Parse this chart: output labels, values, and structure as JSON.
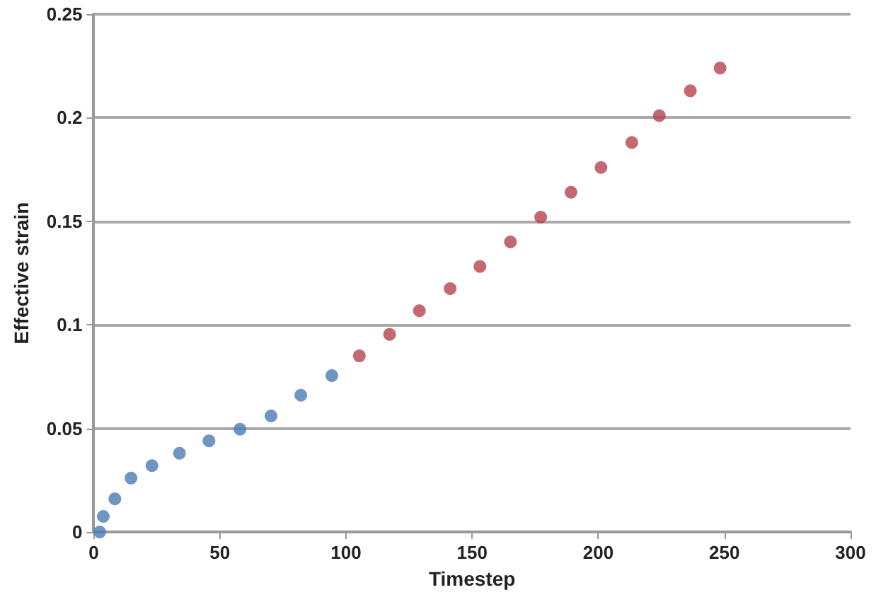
{
  "chart_data": {
    "type": "scatter",
    "xlabel": "Timestep",
    "ylabel": "Effective strain",
    "xlim": [
      0,
      300
    ],
    "xticks": [
      0,
      50,
      100,
      150,
      200,
      250,
      300
    ],
    "ylim": [
      0,
      0.25
    ],
    "yticks": [
      0,
      0.05,
      0.1,
      0.15,
      0.2,
      0.25
    ],
    "grid": "y",
    "marker": "circle",
    "series": [
      {
        "color": "#4a7ab5",
        "x": [
          2.4,
          3.8,
          8.4,
          14.8,
          23.1,
          34,
          45.7,
          58,
          70.3,
          82.1,
          94.4
        ],
        "values": [
          0,
          0.0075,
          0.016,
          0.026,
          0.032,
          0.038,
          0.044,
          0.0496,
          0.056,
          0.066,
          0.0755
        ]
      },
      {
        "color": "#b5424e",
        "x": [
          105.3,
          117.3,
          129.1,
          141.3,
          153.1,
          165.2,
          177.2,
          189.2,
          201.1,
          213.3,
          224.2,
          236.5,
          248.3
        ],
        "values": [
          0.085,
          0.0954,
          0.1068,
          0.1175,
          0.1282,
          0.14,
          0.152,
          0.164,
          0.176,
          0.188,
          0.201,
          0.213,
          0.224
        ]
      }
    ]
  }
}
